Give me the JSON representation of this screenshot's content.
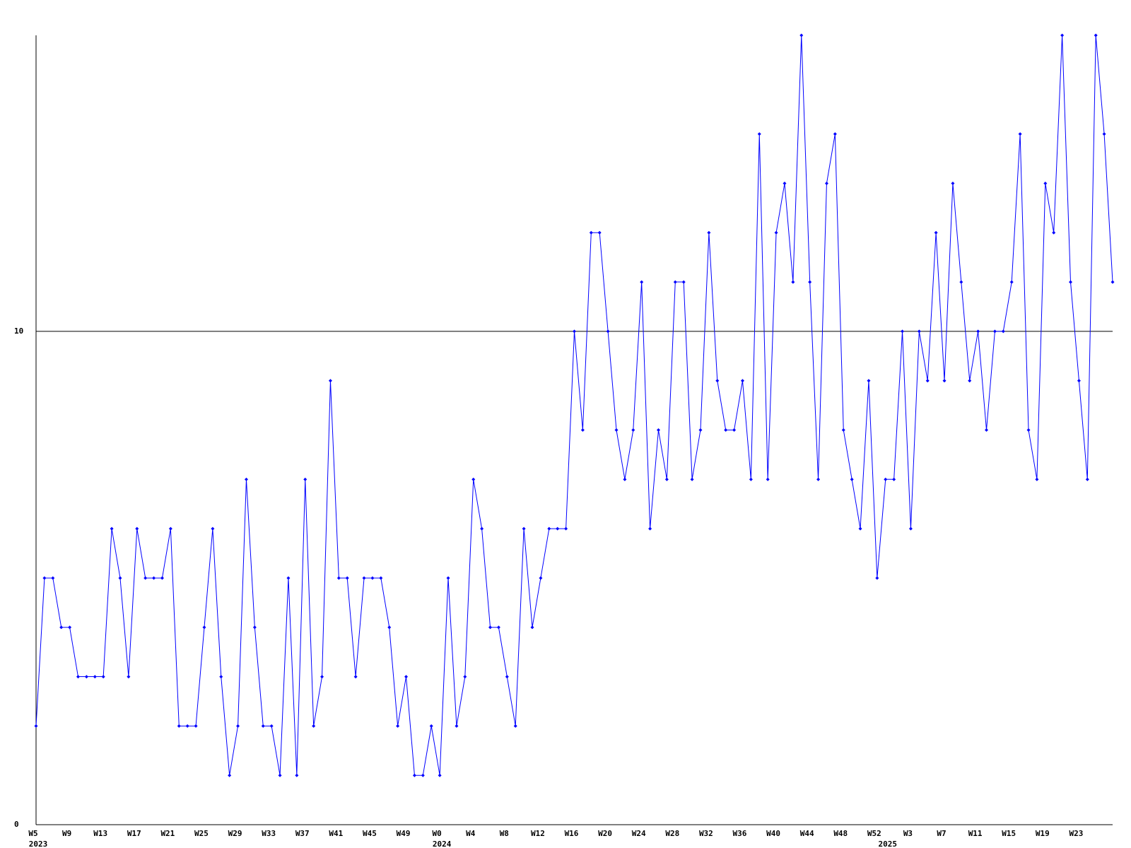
{
  "chart_data": {
    "type": "line",
    "categories": [
      "W5",
      null,
      null,
      null,
      "W9",
      null,
      null,
      null,
      "W13",
      null,
      null,
      null,
      "W17",
      null,
      null,
      null,
      "W21",
      null,
      null,
      null,
      "W25",
      null,
      null,
      null,
      "W29",
      null,
      null,
      null,
      "W33",
      null,
      null,
      null,
      "W37",
      null,
      null,
      null,
      "W41",
      null,
      null,
      null,
      "W45",
      null,
      null,
      null,
      "W49",
      null,
      null,
      null,
      "W0",
      null,
      null,
      null,
      "W4",
      null,
      null,
      null,
      "W8",
      null,
      null,
      null,
      "W12",
      null,
      null,
      null,
      "W16",
      null,
      null,
      null,
      "W20",
      null,
      null,
      null,
      "W24",
      null,
      null,
      null,
      "W28",
      null,
      null,
      null,
      "W32",
      null,
      null,
      null,
      "W36",
      null,
      null,
      null,
      "W40",
      null,
      null,
      null,
      "W44",
      null,
      null,
      null,
      "W48",
      null,
      null,
      null,
      "W52",
      null,
      null,
      null,
      "W3",
      null,
      null,
      null,
      "W7",
      null,
      null,
      null,
      "W11",
      null,
      null,
      null,
      "W15",
      null,
      null,
      null,
      "W19",
      null,
      null,
      null,
      "W23",
      null,
      null,
      null,
      null
    ],
    "year_labels": [
      "2023",
      null,
      null,
      null,
      null,
      null,
      null,
      null,
      null,
      null,
      null,
      null,
      null,
      null,
      null,
      null,
      null,
      null,
      null,
      null,
      null,
      null,
      null,
      null,
      null,
      null,
      null,
      null,
      null,
      null,
      null,
      null,
      null,
      null,
      null,
      null,
      null,
      null,
      null,
      null,
      null,
      null,
      null,
      null,
      null,
      null,
      null,
      null,
      "2024",
      null,
      null,
      null,
      null,
      null,
      null,
      null,
      null,
      null,
      null,
      null,
      null,
      null,
      null,
      null,
      null,
      null,
      null,
      null,
      null,
      null,
      null,
      null,
      null,
      null,
      null,
      null,
      null,
      null,
      null,
      null,
      null,
      null,
      null,
      null,
      null,
      null,
      null,
      null,
      null,
      null,
      null,
      null,
      null,
      null,
      null,
      null,
      null,
      null,
      null,
      null,
      null,
      "2025",
      null,
      null,
      null,
      null,
      null,
      null,
      null,
      null,
      null,
      null,
      null,
      null,
      null,
      null,
      null,
      null,
      null,
      null,
      null,
      null,
      null,
      null,
      null,
      null,
      null,
      null
    ],
    "series": [
      {
        "color": "#0000ff",
        "values": [
          2,
          5,
          5,
          4,
          4,
          3,
          3,
          3,
          3,
          6,
          5,
          3,
          6,
          5,
          5,
          5,
          6,
          2,
          2,
          2,
          4,
          6,
          3,
          1,
          2,
          7,
          4,
          2,
          2,
          1,
          5,
          1,
          7,
          2,
          3,
          9,
          5,
          5,
          3,
          5,
          5,
          5,
          4,
          2,
          3,
          1,
          1,
          2,
          1,
          5,
          2,
          3,
          7,
          6,
          4,
          4,
          3,
          2,
          6,
          4,
          5,
          6,
          6,
          6,
          10,
          8,
          12,
          12,
          10,
          8,
          7,
          8,
          11,
          6,
          8,
          7,
          11,
          11,
          7,
          8,
          12,
          9,
          8,
          8,
          9,
          7,
          14,
          7,
          12,
          13,
          11,
          16,
          11,
          7,
          13,
          14,
          8,
          7,
          6,
          9,
          5,
          7,
          7,
          10,
          6,
          10,
          9,
          12,
          9,
          13,
          11,
          9,
          10,
          8,
          10,
          10,
          11,
          14,
          8,
          7,
          13,
          12,
          16,
          11,
          9,
          7,
          16,
          14,
          11
        ]
      }
    ],
    "ylim": [
      0,
      16
    ],
    "yticks": [
      0,
      10
    ],
    "grid": true
  }
}
